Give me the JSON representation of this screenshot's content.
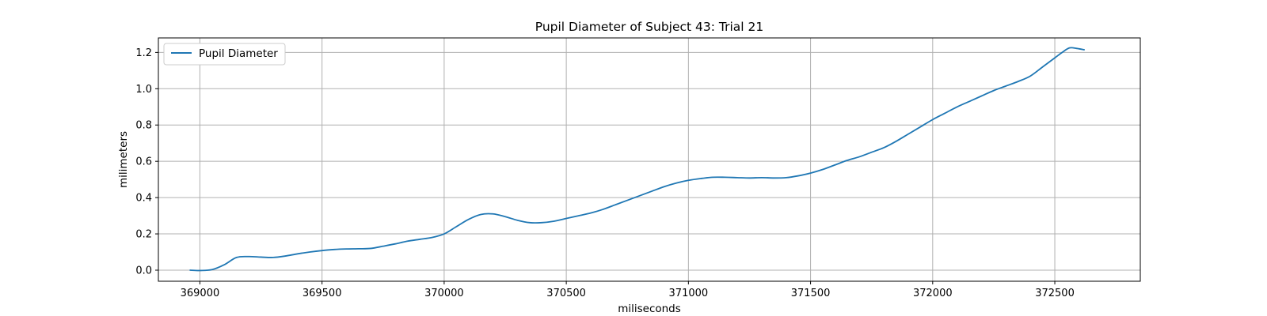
{
  "chart_data": {
    "type": "line",
    "title": "Pupil Diameter of Subject 43: Trial 21",
    "xlabel": "miliseconds",
    "ylabel": "milimeters",
    "xlim": [
      368830,
      372850
    ],
    "ylim": [
      -0.061,
      1.28
    ],
    "x_ticks": [
      369000,
      369500,
      370000,
      370500,
      371000,
      371500,
      372000,
      372500
    ],
    "y_ticks": [
      0.0,
      0.2,
      0.4,
      0.6,
      0.8,
      1.0,
      1.2
    ],
    "x_tick_labels": [
      "369000",
      "369500",
      "370000",
      "370500",
      "371000",
      "371500",
      "372000",
      "372500"
    ],
    "y_tick_labels": [
      "0.0",
      "0.2",
      "0.4",
      "0.6",
      "0.8",
      "1.0",
      "1.2"
    ],
    "grid": true,
    "legend": {
      "position": "top-left",
      "entries": [
        "Pupil Diameter"
      ]
    },
    "series": [
      {
        "name": "Pupil Diameter",
        "color": "#1f77b4",
        "x": [
          368960,
          369000,
          369050,
          369100,
          369150,
          369200,
          369250,
          369300,
          369350,
          369400,
          369450,
          369500,
          369550,
          369600,
          369650,
          369700,
          369750,
          369800,
          369850,
          369900,
          369950,
          370000,
          370050,
          370100,
          370150,
          370200,
          370250,
          370300,
          370350,
          370400,
          370450,
          370500,
          370550,
          370600,
          370650,
          370700,
          370750,
          370800,
          370850,
          370900,
          370950,
          371000,
          371050,
          371100,
          371150,
          371200,
          371250,
          371300,
          371350,
          371400,
          371450,
          371500,
          371550,
          371600,
          371650,
          371700,
          371750,
          371800,
          371850,
          371900,
          371950,
          372000,
          372050,
          372100,
          372150,
          372200,
          372250,
          372300,
          372350,
          372400,
          372450,
          372500,
          372530,
          372560,
          372590,
          372620
        ],
        "y": [
          0.0,
          -0.002,
          0.003,
          0.03,
          0.07,
          0.075,
          0.072,
          0.07,
          0.078,
          0.09,
          0.1,
          0.108,
          0.114,
          0.117,
          0.118,
          0.12,
          0.132,
          0.145,
          0.16,
          0.17,
          0.18,
          0.2,
          0.24,
          0.28,
          0.307,
          0.31,
          0.295,
          0.275,
          0.262,
          0.262,
          0.27,
          0.285,
          0.3,
          0.315,
          0.335,
          0.36,
          0.385,
          0.41,
          0.435,
          0.46,
          0.48,
          0.495,
          0.505,
          0.512,
          0.512,
          0.51,
          0.508,
          0.51,
          0.508,
          0.51,
          0.52,
          0.535,
          0.555,
          0.58,
          0.605,
          0.625,
          0.65,
          0.675,
          0.71,
          0.75,
          0.79,
          0.83,
          0.865,
          0.9,
          0.93,
          0.96,
          0.99,
          1.015,
          1.04,
          1.07,
          1.12,
          1.17,
          1.2,
          1.225,
          1.222,
          1.215
        ]
      }
    ]
  }
}
